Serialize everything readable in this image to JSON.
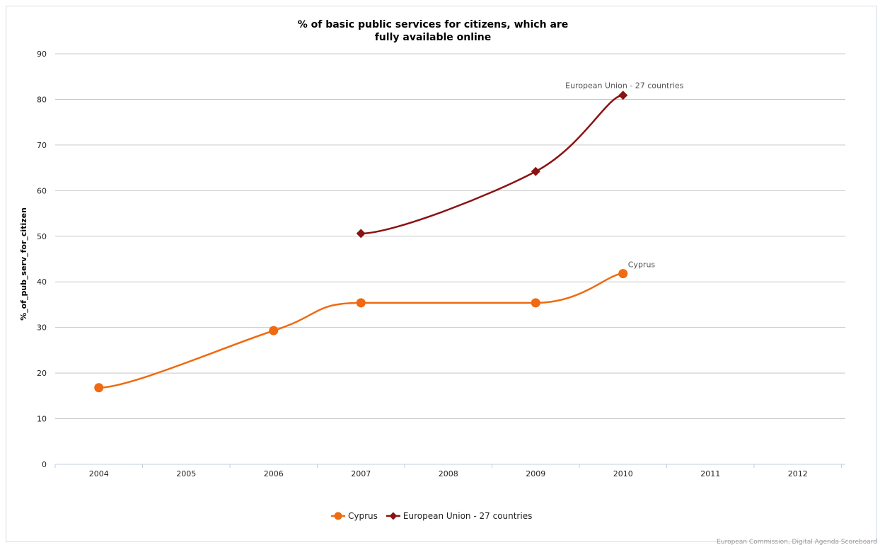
{
  "chart_data": {
    "type": "line",
    "title_lines": [
      "% of basic public services for citizens, which are",
      "fully available online"
    ],
    "xlabel": "",
    "ylabel": "%_of_pub_serv_for_citizen",
    "categories": [
      "2004",
      "2005",
      "2006",
      "2007",
      "2008",
      "2009",
      "2010",
      "2011",
      "2012"
    ],
    "ylim": [
      0,
      90
    ],
    "yticks": [
      0,
      10,
      20,
      30,
      40,
      50,
      60,
      70,
      80,
      90
    ],
    "grid": "horizontal",
    "legend_position": "bottom-center",
    "series": [
      {
        "name": "Cyprus",
        "color": "#ef6a10",
        "marker": "circle",
        "points": [
          {
            "x": "2004",
            "y": 16.8
          },
          {
            "x": "2006",
            "y": 29.3
          },
          {
            "x": "2007",
            "y": 35.4
          },
          {
            "x": "2009",
            "y": 35.4
          },
          {
            "x": "2010",
            "y": 41.8
          }
        ],
        "end_label": "Cyprus"
      },
      {
        "name": "European Union - 27 countries",
        "color": "#8b1212",
        "marker": "diamond",
        "points": [
          {
            "x": "2007",
            "y": 50.6
          },
          {
            "x": "2009",
            "y": 64.2
          },
          {
            "x": "2010",
            "y": 80.9
          }
        ],
        "end_label": "European Union - 27 countries"
      }
    ],
    "credit": "European Commission, Digital Agenda Scoreboard"
  }
}
